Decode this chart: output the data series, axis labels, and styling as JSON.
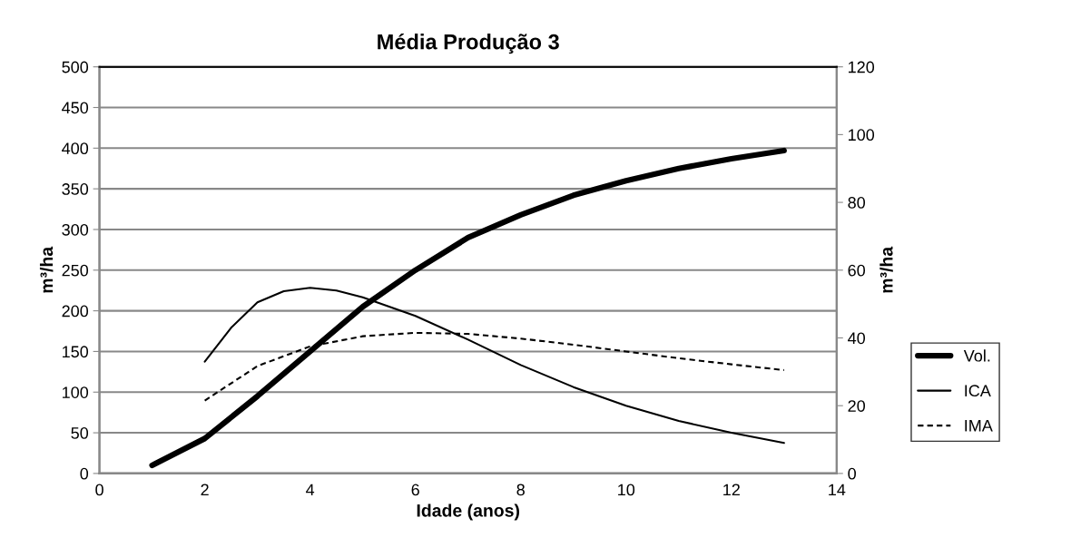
{
  "chart_data": {
    "type": "line",
    "title": "Média Produção 3",
    "xlabel": "Idade (anos)",
    "ylabel": "m³/ha",
    "y2label": "m³/ha",
    "xlim": [
      0,
      14
    ],
    "xticks": [
      0,
      2,
      4,
      6,
      8,
      10,
      12,
      14
    ],
    "ylim": [
      0,
      500
    ],
    "yticks": [
      0,
      50,
      100,
      150,
      200,
      250,
      300,
      350,
      400,
      450,
      500
    ],
    "y2lim": [
      0,
      120
    ],
    "y2ticks": [
      0,
      20,
      40,
      60,
      80,
      100,
      120
    ],
    "grid": "y",
    "legend": "right",
    "marker": "none",
    "series": [
      {
        "name": "Vol.",
        "color": "#000000",
        "line_style": "solid",
        "x": [
          1,
          2,
          3,
          4,
          5,
          6,
          7,
          8,
          9,
          10,
          11,
          12,
          13
        ],
        "values": [
          10,
          43,
          95,
          150,
          205,
          250,
          290,
          318,
          342,
          360,
          375,
          387,
          397
        ]
      },
      {
        "name": "ICA",
        "color": "#000000",
        "line_style": "solid",
        "axis": "y2",
        "x": [
          2,
          2.5,
          3,
          3.5,
          4,
          4.5,
          5,
          6,
          7,
          8,
          9,
          10,
          11,
          12,
          13
        ],
        "values": [
          33,
          43,
          50.5,
          53.8,
          54.8,
          54,
          52,
          46.5,
          39.5,
          32,
          25.5,
          20,
          15.5,
          12,
          9
        ]
      },
      {
        "name": "IMA",
        "color": "#000000",
        "line_style": "dashed",
        "axis": "y2",
        "x": [
          2,
          3,
          4,
          5,
          6,
          7,
          8,
          9,
          10,
          11,
          12,
          13
        ],
        "values": [
          21.5,
          31.7,
          37.5,
          40.5,
          41.5,
          41.2,
          39.8,
          38,
          36,
          34,
          32.2,
          30.5
        ]
      }
    ]
  }
}
